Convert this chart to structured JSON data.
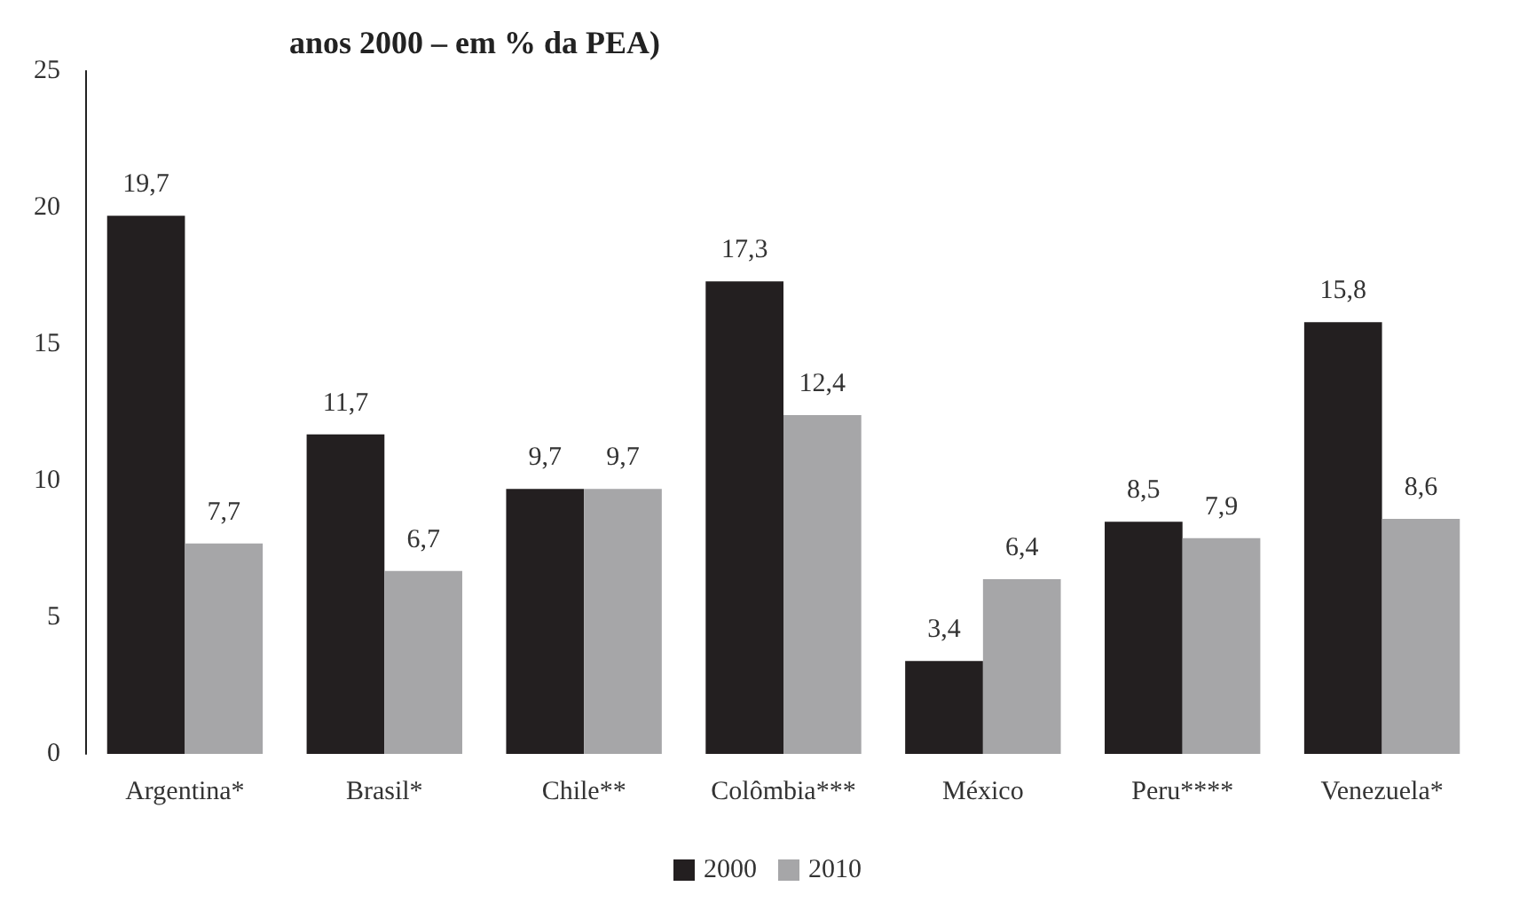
{
  "chart_data": {
    "type": "bar",
    "title": "anos 2000 – em % da PEA)",
    "categories": [
      "Argentina*",
      "Brasil*",
      "Chile**",
      "Colômbia***",
      "México",
      "Peru****",
      "Venezuela*"
    ],
    "series": [
      {
        "name": "2000",
        "color": "#231f20",
        "values": [
          19.7,
          11.7,
          9.7,
          17.3,
          3.4,
          8.5,
          15.8
        ],
        "value_labels": [
          "19,7",
          "11,7",
          "9,7",
          "17,3",
          "3,4",
          "8,5",
          "15,8"
        ]
      },
      {
        "name": "2010",
        "color": "#a6a6a8",
        "values": [
          7.7,
          6.7,
          9.7,
          12.4,
          6.4,
          7.9,
          8.6
        ],
        "value_labels": [
          "7,7",
          "6,7",
          "9,7",
          "12,4",
          "6,4",
          "7,9",
          "8,6"
        ]
      }
    ],
    "ylim": [
      0,
      25
    ],
    "yticks": [
      0,
      5,
      10,
      15,
      20,
      25
    ],
    "grid": false,
    "legend": "bottom"
  }
}
